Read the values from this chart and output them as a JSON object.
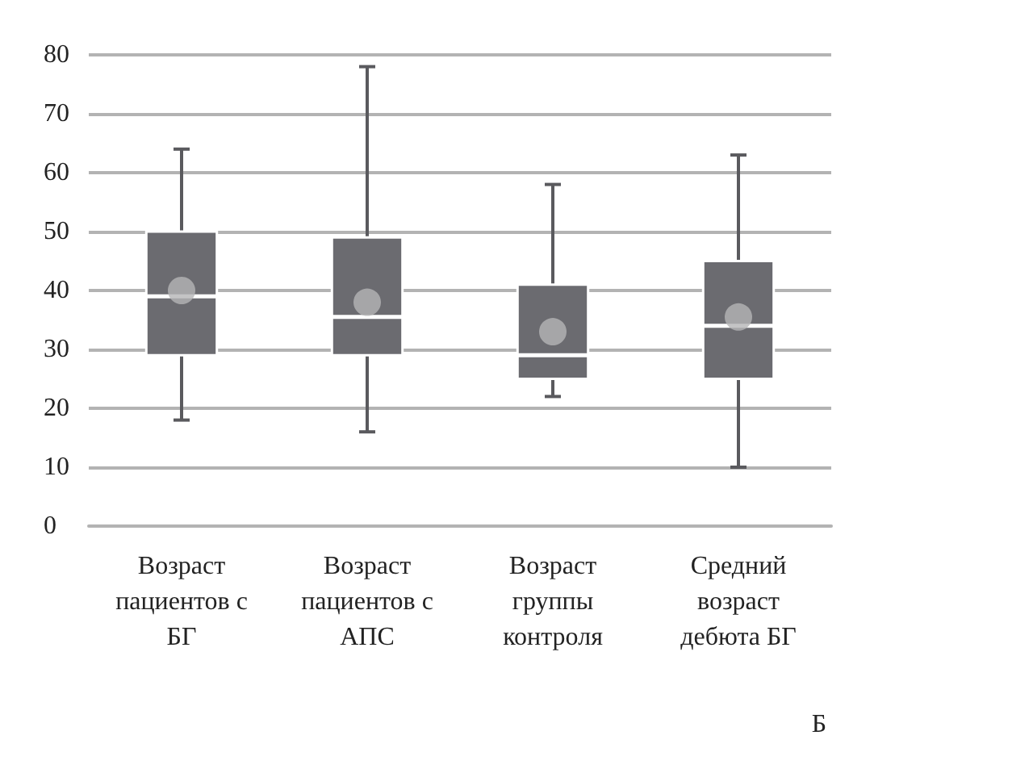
{
  "chart_data": {
    "type": "box",
    "categories": [
      "Возраст пациентов с БГ",
      "Возраст пациентов с АПС",
      "Возраст группы контроля",
      "Средний возраст дебюта БГ"
    ],
    "boxes": [
      {
        "low": 18,
        "q1": 29,
        "median": 39,
        "q3": 50,
        "high": 64,
        "mean": 40
      },
      {
        "low": 16,
        "q1": 29,
        "median": 35.5,
        "q3": 49,
        "high": 78,
        "mean": 38
      },
      {
        "low": 22,
        "q1": 25,
        "median": 29,
        "q3": 41,
        "high": 58,
        "mean": 33
      },
      {
        "low": 10,
        "q1": 25,
        "median": 34,
        "q3": 45,
        "high": 63,
        "mean": 35.5
      }
    ],
    "color": "#6b6b70",
    "ylim": [
      0,
      80
    ],
    "yticks": [
      0,
      10,
      20,
      30,
      40,
      50,
      60,
      70,
      80
    ],
    "grid": "y",
    "annotations": [
      "Б"
    ]
  }
}
